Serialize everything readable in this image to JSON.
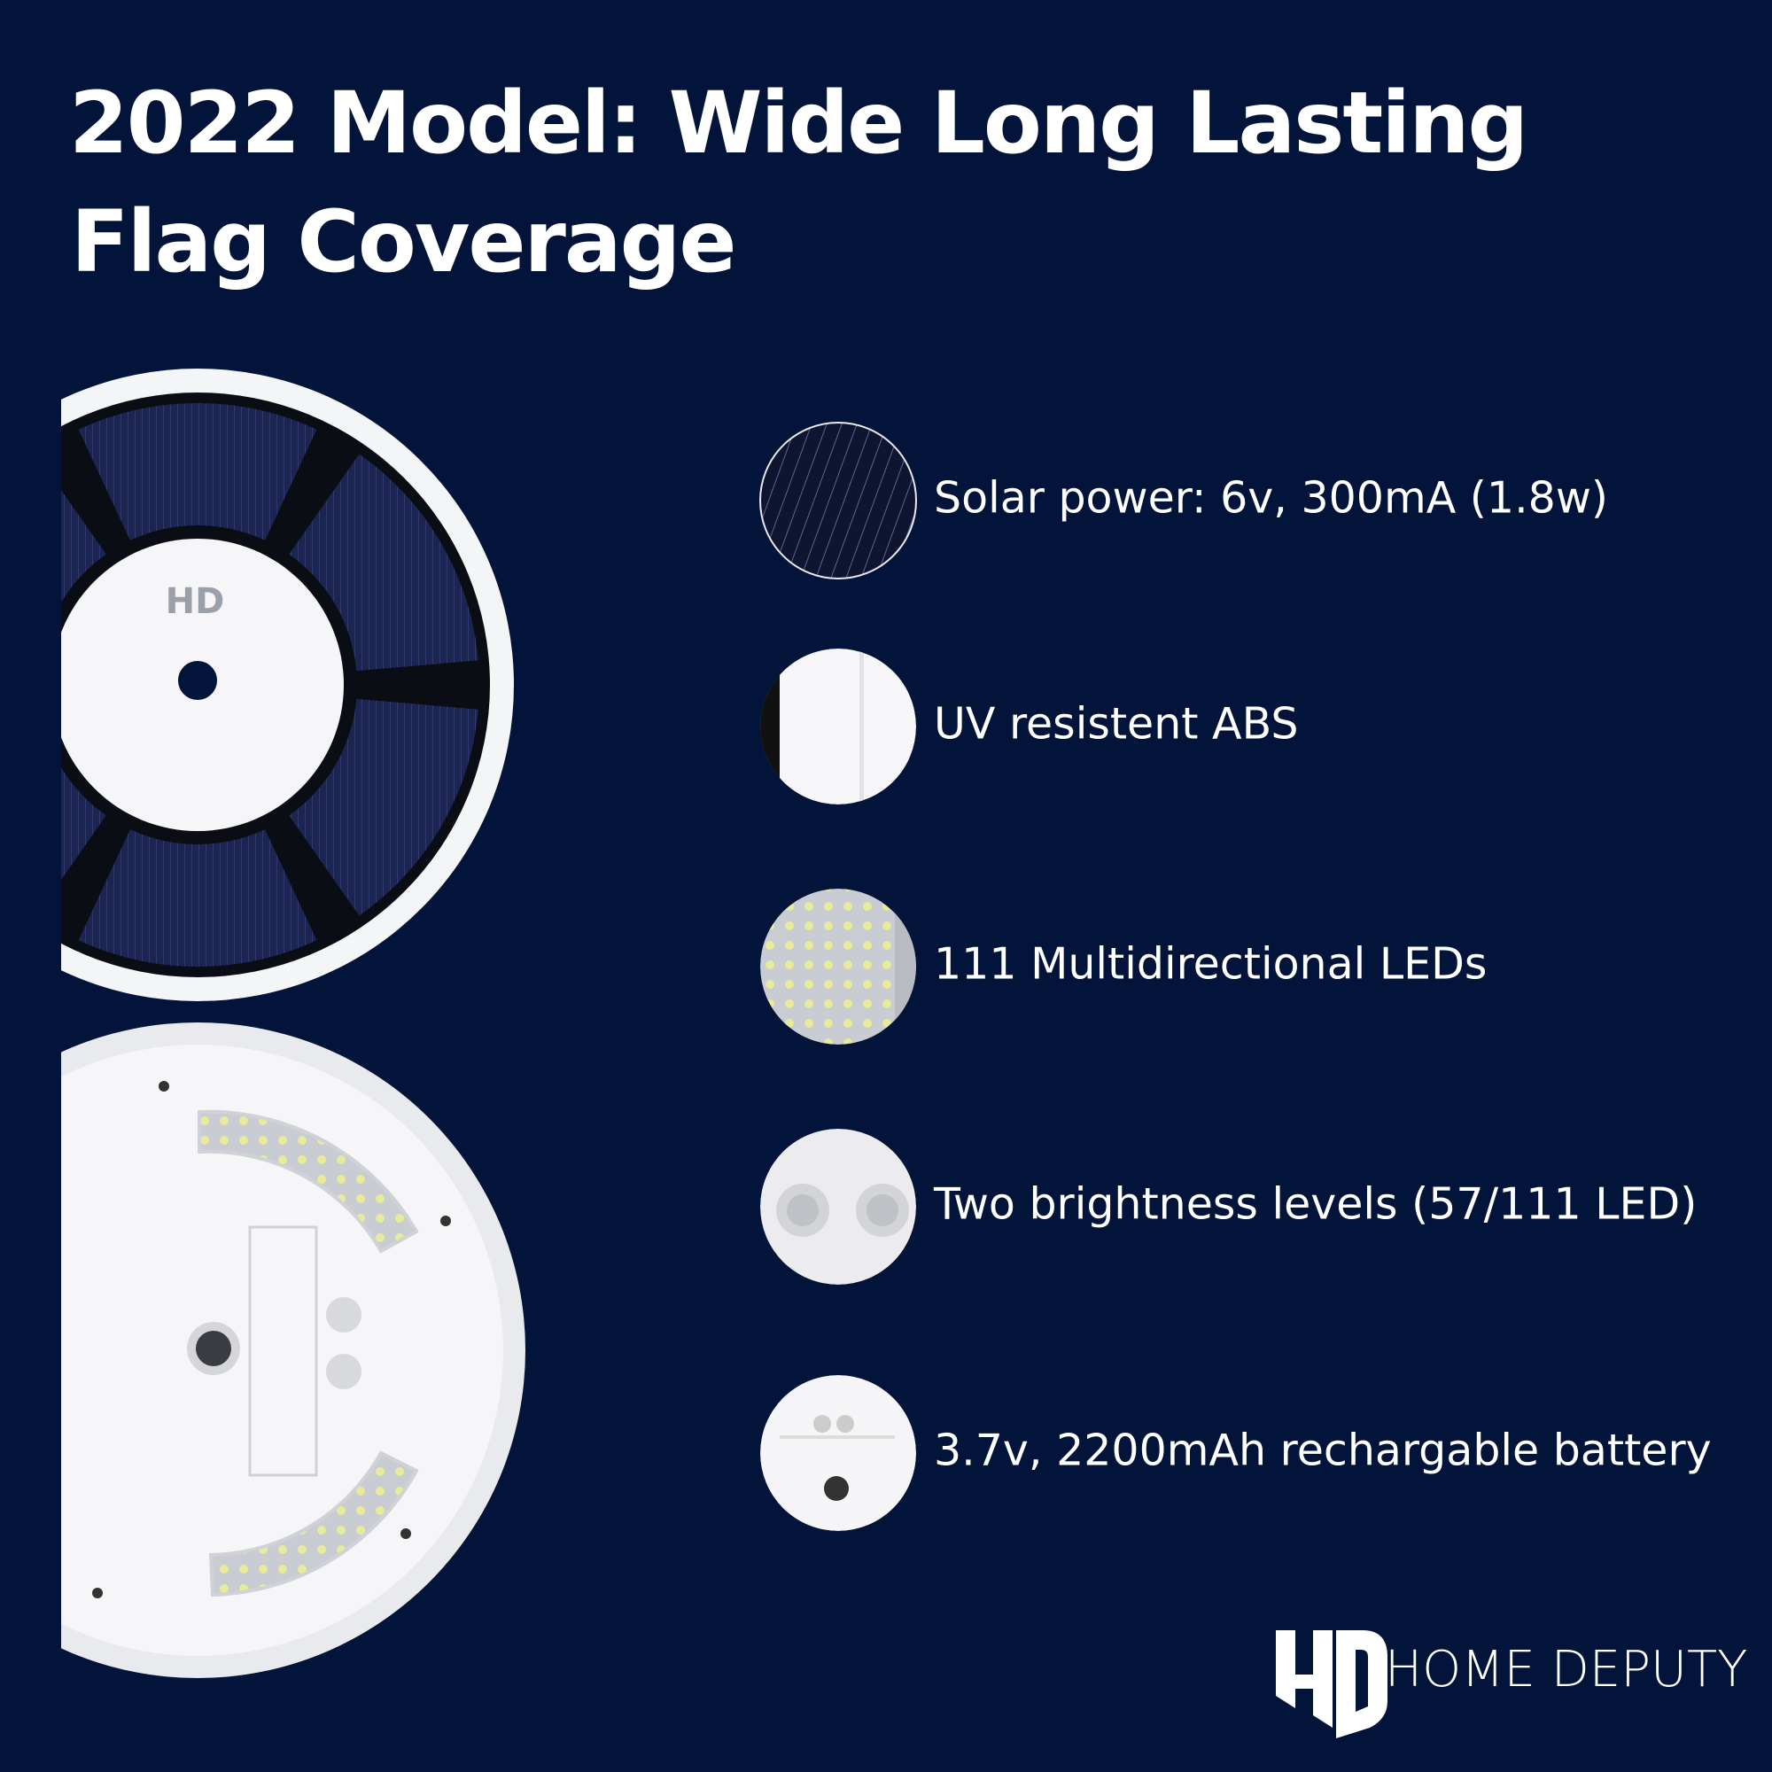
{
  "header": {
    "title_lines": [
      "2022 Model: Wide Long Lasting",
      "Flag Coverage"
    ]
  },
  "features": [
    "Solar power: 6v, 300mA (1.8w)",
    "UV resistent ABS",
    "111 Multidirectional LEDs",
    "Two brightness levels (57/111 LED)",
    "3.7v, 2200mAh rechargable battery"
  ],
  "brand": {
    "name": "HOME DEPUTY"
  }
}
